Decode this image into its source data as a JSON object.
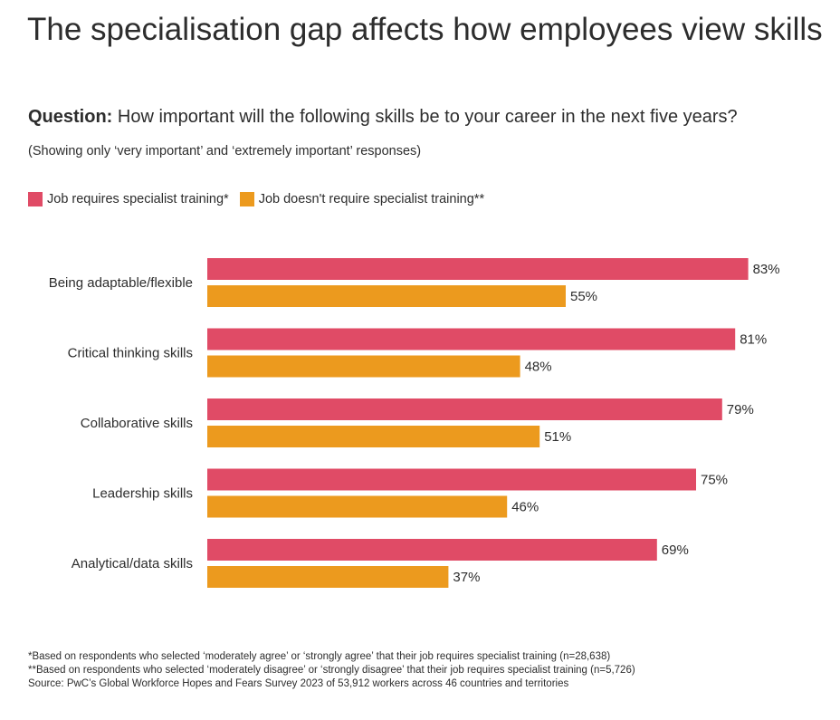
{
  "title": "The specialisation gap affects how employees view skills",
  "question": {
    "label": "Question:",
    "text": "How important will the following skills be to your career in the next five years?"
  },
  "note": "(Showing only ‘very important’ and ‘extremely important’ responses)",
  "colors": {
    "specialist": "#e04b66",
    "non_specialist": "#ec9a1e",
    "text": "#2d2d2d"
  },
  "chart_data": {
    "type": "bar",
    "orientation": "horizontal",
    "categories": [
      "Being adaptable/flexible",
      "Critical thinking skills",
      "Collaborative skills",
      "Leadership skills",
      "Analytical/data skills"
    ],
    "series": [
      {
        "name": "Job requires specialist training*",
        "values": [
          83,
          81,
          79,
          75,
          69
        ],
        "color": "#e04b66"
      },
      {
        "name": "Job doesn't require specialist training**",
        "values": [
          55,
          48,
          51,
          46,
          37
        ],
        "color": "#ec9a1e"
      }
    ],
    "value_suffix": "%",
    "xlim": [
      0,
      100
    ],
    "grid": false,
    "legend": "top-left"
  },
  "footnotes": [
    "*Based on respondents who selected ‘moderately agree’ or ‘strongly agree’ that their job requires specialist training (n=28,638)",
    "**Based on respondents who selected ‘moderately disagree’ or ‘strongly disagree’ that their job requires specialist training (n=5,726)",
    "Source: PwC’s Global Workforce Hopes and Fears Survey 2023 of 53,912 workers across 46 countries and territories"
  ]
}
